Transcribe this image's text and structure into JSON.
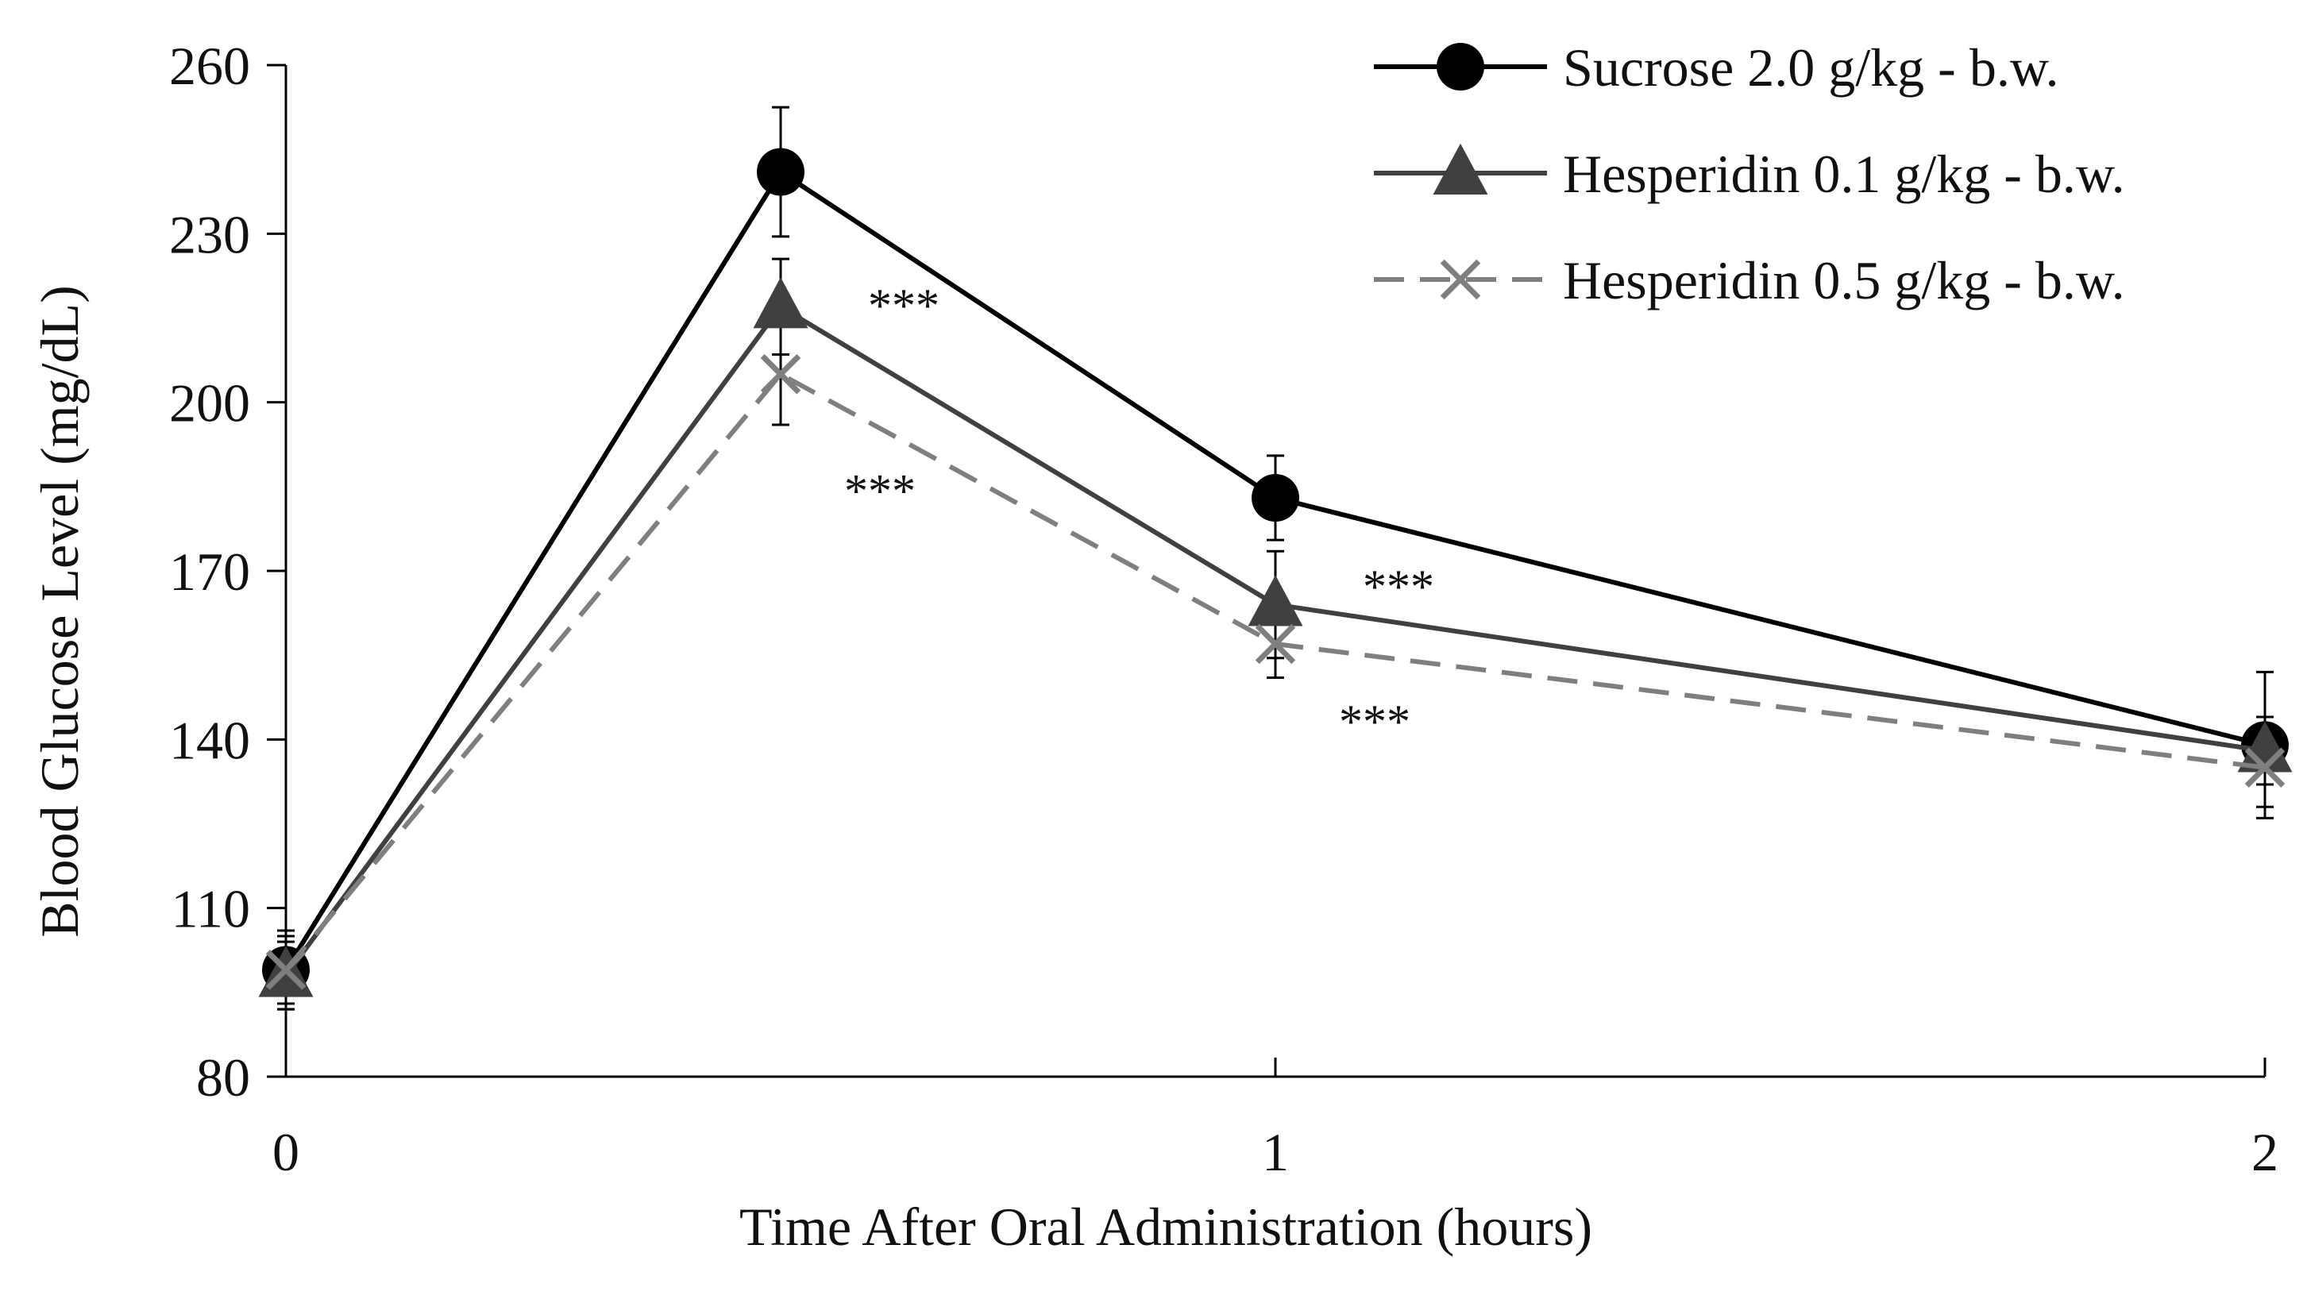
{
  "chart_data": {
    "type": "line",
    "title": "",
    "xlabel": "Time After Oral Administration (hours)",
    "ylabel": "Blood Glucose Level (mg/dL)",
    "xlim": [
      0,
      2
    ],
    "ylim": [
      80,
      260
    ],
    "x_ticks": [
      0,
      1,
      2
    ],
    "x_tick_labels": [
      "0",
      "1",
      "2"
    ],
    "y_ticks": [
      80,
      110,
      140,
      170,
      200,
      230,
      260
    ],
    "y_tick_labels": [
      "80",
      "110",
      "140",
      "170",
      "200",
      "230",
      "260"
    ],
    "grid": false,
    "legend_position": "top-right",
    "x": [
      0,
      0.5,
      1,
      2
    ],
    "series": [
      {
        "name": "Sucrose 2.0 g/kg - b.w.",
        "marker": "circle",
        "line_style": "solid",
        "color": "#000000",
        "values": [
          99,
          241,
          183,
          139
        ],
        "errors": [
          7,
          11.5,
          7.5,
          13
        ]
      },
      {
        "name": "Hesperidin 0.1 g/kg - b.w.",
        "marker": "triangle",
        "line_style": "solid",
        "color": "#404040",
        "values": [
          98,
          217,
          164,
          138
        ],
        "errors": [
          6,
          8.5,
          9.5,
          6
        ]
      },
      {
        "name": "Hesperidin 0.5 g/kg - b.w.",
        "marker": "x",
        "line_style": "dashed",
        "color": "#7f7f7f",
        "values": [
          99,
          205,
          157,
          135
        ],
        "errors": [
          6,
          9,
          6,
          7
        ]
      }
    ],
    "annotations": [
      {
        "text": "***",
        "x": 0.5,
        "y": 220,
        "series": "Hesperidin 0.1 g/kg - b.w."
      },
      {
        "text": "***",
        "x": 0.5,
        "y": 187,
        "series": "Hesperidin 0.5 g/kg - b.w."
      },
      {
        "text": "***",
        "x": 1,
        "y": 170,
        "series": "Hesperidin 0.1 g/kg - b.w."
      },
      {
        "text": "***",
        "x": 1,
        "y": 146,
        "series": "Hesperidin 0.5 g/kg - b.w."
      }
    ]
  }
}
